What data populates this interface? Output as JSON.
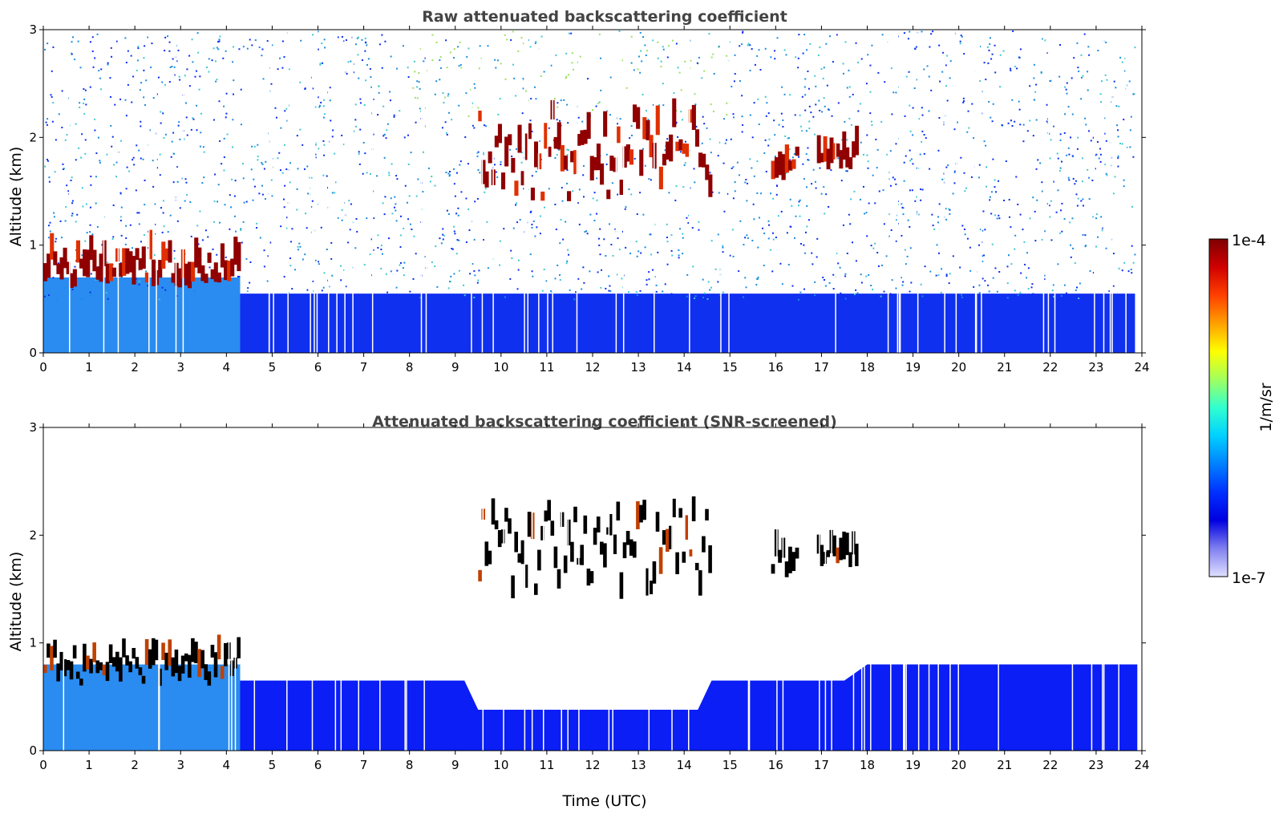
{
  "chart_data": [
    {
      "type": "heatmap",
      "title": "Raw attenuated backscattering coefficient",
      "xlabel": "",
      "ylabel": "Altitude (km)",
      "xlim": [
        0,
        24
      ],
      "ylim": [
        0,
        3
      ],
      "xticks": [
        "0",
        "1",
        "2",
        "3",
        "4",
        "5",
        "6",
        "7",
        "8",
        "9",
        "10",
        "11",
        "12",
        "13",
        "14",
        "15",
        "16",
        "17",
        "18",
        "19",
        "20",
        "21",
        "22",
        "23",
        "24"
      ],
      "yticks": [
        "0",
        "1",
        "2",
        "3"
      ],
      "features": [
        {
          "description": "boundary layer cloud",
          "x_range": [
            0,
            4.3
          ],
          "altitude_km": [
            0.6,
            1.0
          ]
        },
        {
          "description": "mid-level cloud layer",
          "x_range": [
            9.5,
            14.6
          ],
          "altitude_km": [
            1.4,
            2.5
          ]
        },
        {
          "description": "cloud patch",
          "x_range": [
            15.9,
            16.5
          ],
          "altitude_km": [
            1.6,
            1.95
          ]
        },
        {
          "description": "cloud patch",
          "x_range": [
            16.9,
            17.8
          ],
          "altitude_km": [
            1.7,
            1.9
          ]
        }
      ]
    },
    {
      "type": "heatmap",
      "title": "Attenuated backscattering coefficient (SNR-screened)",
      "xlabel": "Time (UTC)",
      "ylabel": "Altitude (km)",
      "xlim": [
        0,
        24
      ],
      "ylim": [
        0,
        3
      ],
      "xticks": [
        "0",
        "1",
        "2",
        "3",
        "4",
        "5",
        "6",
        "7",
        "8",
        "9",
        "10",
        "11",
        "12",
        "13",
        "14",
        "15",
        "16",
        "17",
        "18",
        "19",
        "20",
        "21",
        "22",
        "23",
        "24"
      ],
      "yticks": [
        "0",
        "1",
        "2",
        "3"
      ],
      "aerosol_layer_top_km": [
        [
          0,
          0.65
        ],
        [
          4.3,
          0.65
        ],
        [
          9.2,
          0.65
        ],
        [
          9.5,
          0.38
        ],
        [
          14.3,
          0.38
        ],
        [
          14.6,
          0.65
        ],
        [
          17.5,
          0.65
        ],
        [
          18.0,
          0.8
        ],
        [
          23.9,
          0.8
        ]
      ]
    }
  ],
  "colorbar": {
    "label": "1/m/sr",
    "max_label": "1e-4",
    "min_label": "1e-7",
    "colors": [
      "#7f0000",
      "#d00000",
      "#ff4000",
      "#ffa000",
      "#ffff00",
      "#a0ff60",
      "#30ffd0",
      "#00d0ff",
      "#0080ff",
      "#0030ff",
      "#0000e0",
      "#8080f0",
      "#e0e0ff"
    ]
  }
}
